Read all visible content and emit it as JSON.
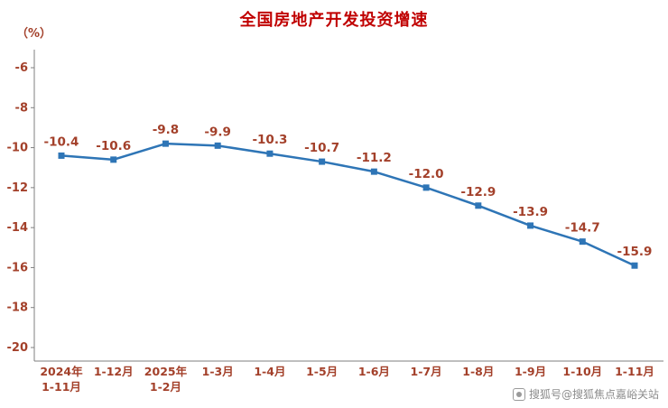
{
  "chart_data": {
    "type": "line",
    "title": "全国房地产开发投资增速",
    "ylabel": "（%）",
    "xlabel": "",
    "categories": [
      [
        "2024年",
        "1-11月"
      ],
      [
        "1-12月"
      ],
      [
        "2025年",
        "1-2月"
      ],
      [
        "1-3月"
      ],
      [
        "1-4月"
      ],
      [
        "1-5月"
      ],
      [
        "1-6月"
      ],
      [
        "1-7月"
      ],
      [
        "1-8月"
      ],
      [
        "1-9月"
      ],
      [
        "1-10月"
      ],
      [
        "1-11月"
      ]
    ],
    "values": [
      -10.4,
      -10.6,
      -9.8,
      -9.9,
      -10.3,
      -10.7,
      -11.2,
      -12.0,
      -12.9,
      -13.9,
      -14.7,
      -15.9
    ],
    "labels": [
      "-10.4",
      "-10.6",
      "-9.8",
      "-9.9",
      "-10.3",
      "-10.7",
      "-11.2",
      "-12.0",
      "-12.9",
      "-13.9",
      "-14.7",
      "-15.9"
    ],
    "ylim": [
      -20,
      -6
    ],
    "yticks": [
      -6,
      -8,
      -10,
      -12,
      -14,
      -16,
      -18,
      -20
    ],
    "grid": false,
    "legend_position": "none",
    "line_color": "#2e75b6",
    "marker": "square",
    "label_color": "#a3402a",
    "title_color": "#c00000",
    "axis_color": "#7f7f7f"
  },
  "watermark": {
    "text": "搜狐号@搜狐焦点嘉峪关站"
  }
}
